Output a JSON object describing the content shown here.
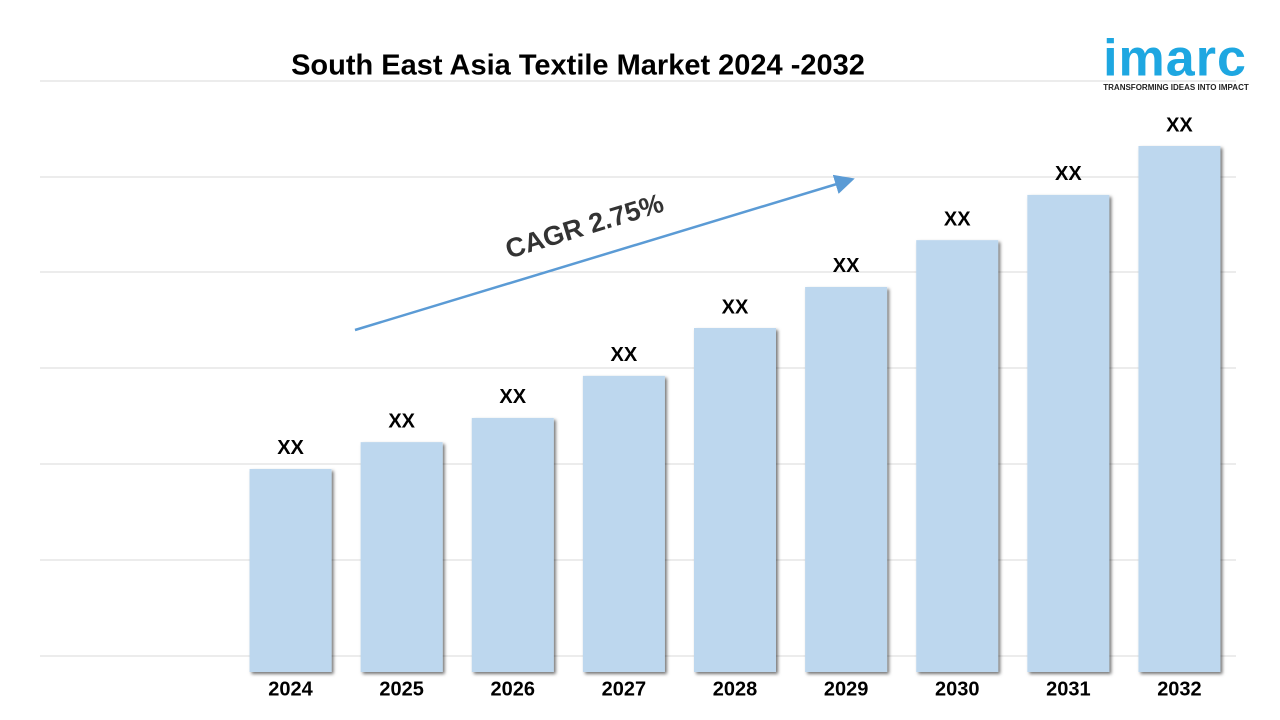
{
  "chart_data": {
    "type": "bar",
    "title": "South East Asia Textile Market 2024 -2032",
    "categories": [
      "2024",
      "2025",
      "2026",
      "2027",
      "2028",
      "2029",
      "2030",
      "2031",
      "2032"
    ],
    "values": [
      38.6,
      43.7,
      48.3,
      56.3,
      65.4,
      73.2,
      82.1,
      90.7,
      100
    ],
    "value_labels": [
      "XX",
      "XX",
      "XX",
      "XX",
      "XX",
      "XX",
      "XX",
      "XX",
      "XX"
    ],
    "color": "#bdd7ee",
    "ylim": [
      0,
      100
    ],
    "annotation": "CAGR 2.75%"
  },
  "logo": {
    "name": "imarc",
    "tagline": "TRANSFORMING IDEAS INTO IMPACT"
  }
}
